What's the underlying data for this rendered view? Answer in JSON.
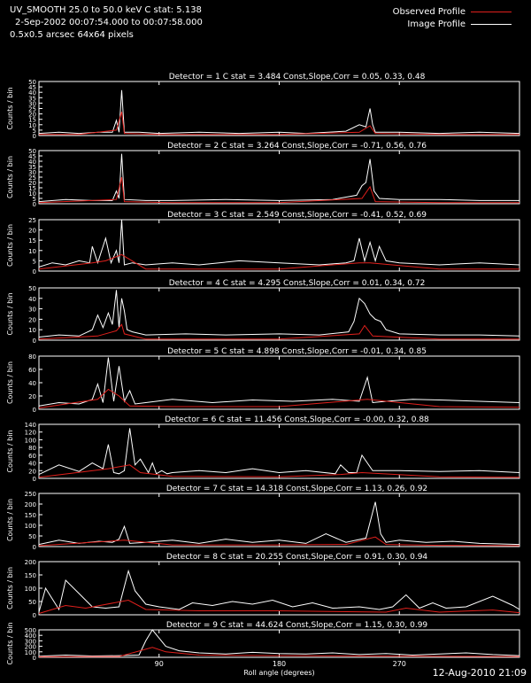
{
  "header": {
    "line1": "UV_SMOOTH 25.0 to 50.0 keV C stat: 5.138",
    "line2": "2-Sep-2002 00:07:54.000 to 00:07:58.000",
    "line3": "0.5x0.5 arcsec 64x64 pixels"
  },
  "legend": [
    {
      "label": "Observed Profile",
      "color": "#e0201c"
    },
    {
      "label": "Image Profile",
      "color": "#ffffff"
    }
  ],
  "footer": {
    "timestamp": "12-Aug-2010 21:09"
  },
  "colors": {
    "background": "#000000",
    "axes": "#ffffff",
    "observed": "#e0201c",
    "image": "#ffffff"
  },
  "chart_data": [
    {
      "type": "line",
      "title": "Detector = 1  C stat = 3.484  Const,Slope,Corr = 0.05, 0.33, 0.48",
      "ylabel": "Counts / bin",
      "xlim": [
        0,
        360
      ],
      "ylim": [
        0,
        50
      ],
      "yticks": [
        0,
        5,
        10,
        15,
        20,
        25,
        30,
        35,
        40,
        45,
        50
      ],
      "xticks": [
        90,
        180,
        270
      ],
      "series": [
        {
          "name": "Image Profile",
          "x": [
            0,
            15,
            30,
            45,
            55,
            58,
            60,
            62,
            64,
            75,
            90,
            120,
            150,
            180,
            200,
            230,
            240,
            245,
            248,
            250,
            252,
            255,
            270,
            300,
            330,
            360
          ],
          "values": [
            2,
            3,
            2,
            3,
            3,
            14,
            3,
            42,
            3,
            3,
            2,
            3,
            2,
            3,
            2,
            4,
            10,
            8,
            25,
            10,
            3,
            3,
            3,
            2,
            3,
            2
          ]
        },
        {
          "name": "Observed Profile",
          "x": [
            0,
            30,
            58,
            62,
            64,
            90,
            180,
            240,
            248,
            252,
            300,
            360
          ],
          "values": [
            1,
            1,
            5,
            22,
            2,
            1,
            1,
            3,
            9,
            2,
            1,
            1
          ]
        }
      ]
    },
    {
      "type": "line",
      "title": "Detector = 2  C stat = 3.264  Const,Slope,Corr = -0.71, 0.56, 0.76",
      "ylabel": "Counts / bin",
      "xlim": [
        0,
        360
      ],
      "ylim": [
        0,
        50
      ],
      "yticks": [
        0,
        5,
        10,
        15,
        20,
        25,
        30,
        35,
        40,
        45,
        50
      ],
      "xticks": [
        90,
        180,
        270
      ],
      "series": [
        {
          "name": "Image Profile",
          "x": [
            0,
            20,
            40,
            55,
            58,
            60,
            62,
            64,
            80,
            100,
            140,
            180,
            220,
            238,
            242,
            245,
            248,
            251,
            255,
            270,
            300,
            330,
            360
          ],
          "values": [
            2,
            4,
            3,
            3,
            12,
            5,
            47,
            4,
            3,
            3,
            4,
            3,
            4,
            8,
            17,
            20,
            42,
            12,
            5,
            4,
            4,
            3,
            3
          ]
        },
        {
          "name": "Observed Profile",
          "x": [
            0,
            58,
            62,
            64,
            100,
            180,
            242,
            248,
            252,
            300,
            360
          ],
          "values": [
            1,
            4,
            25,
            2,
            1,
            1,
            5,
            16,
            2,
            1,
            1
          ]
        }
      ]
    },
    {
      "type": "line",
      "title": "Detector = 3  C stat = 2.549  Const,Slope,Corr = -0.41, 0.52, 0.69",
      "ylabel": "Counts / bin",
      "xlim": [
        0,
        360
      ],
      "ylim": [
        0,
        25
      ],
      "yticks": [
        0,
        5,
        10,
        15,
        20,
        25
      ],
      "xticks": [
        90,
        180,
        270
      ],
      "series": [
        {
          "name": "Image Profile",
          "x": [
            0,
            10,
            20,
            30,
            38,
            40,
            44,
            50,
            54,
            58,
            60,
            62,
            64,
            70,
            80,
            100,
            120,
            150,
            180,
            210,
            230,
            236,
            240,
            244,
            248,
            252,
            255,
            260,
            270,
            300,
            330,
            360
          ],
          "values": [
            2,
            4,
            3,
            5,
            4,
            12,
            4,
            16,
            4,
            10,
            4,
            25,
            3,
            4,
            3,
            4,
            3,
            5,
            4,
            3,
            4,
            5,
            16,
            5,
            14,
            5,
            12,
            5,
            4,
            3,
            4,
            3
          ]
        },
        {
          "name": "Observed Profile",
          "x": [
            0,
            40,
            50,
            62,
            80,
            180,
            240,
            248,
            300,
            360
          ],
          "values": [
            1,
            4,
            5,
            8,
            1,
            1,
            4,
            4,
            1,
            1
          ]
        }
      ]
    },
    {
      "type": "line",
      "title": "Detector = 4  C stat = 4.295  Const,Slope,Corr = 0.01, 0.34, 0.72",
      "ylabel": "Counts / bin",
      "xlim": [
        0,
        360
      ],
      "ylim": [
        0,
        50
      ],
      "yticks": [
        0,
        10,
        20,
        30,
        40,
        50
      ],
      "xticks": [
        90,
        180,
        270
      ],
      "series": [
        {
          "name": "Image Profile",
          "x": [
            0,
            15,
            30,
            40,
            44,
            48,
            52,
            55,
            58,
            60,
            62,
            64,
            66,
            70,
            80,
            110,
            140,
            180,
            210,
            232,
            236,
            240,
            244,
            248,
            252,
            256,
            260,
            270,
            300,
            330,
            360
          ],
          "values": [
            3,
            5,
            4,
            10,
            24,
            12,
            26,
            15,
            48,
            12,
            40,
            28,
            10,
            8,
            5,
            6,
            5,
            6,
            5,
            8,
            18,
            40,
            35,
            25,
            20,
            18,
            10,
            6,
            5,
            5,
            4
          ]
        },
        {
          "name": "Observed Profile",
          "x": [
            0,
            44,
            58,
            62,
            64,
            80,
            180,
            240,
            244,
            250,
            300,
            360
          ],
          "values": [
            1,
            4,
            9,
            15,
            6,
            1,
            1,
            6,
            14,
            4,
            1,
            1
          ]
        }
      ]
    },
    {
      "type": "line",
      "title": "Detector = 5  C stat = 4.898  Const,Slope,Corr = -0.01, 0.34, 0.85",
      "ylabel": "Counts / bin",
      "xlim": [
        0,
        360
      ],
      "ylim": [
        0,
        80
      ],
      "yticks": [
        0,
        20,
        40,
        60,
        80
      ],
      "xticks": [
        90,
        180,
        270
      ],
      "series": [
        {
          "name": "Image Profile",
          "x": [
            0,
            15,
            30,
            40,
            44,
            48,
            52,
            56,
            60,
            64,
            68,
            72,
            80,
            100,
            130,
            160,
            190,
            220,
            240,
            246,
            250,
            260,
            280,
            300,
            330,
            360
          ],
          "values": [
            5,
            10,
            8,
            15,
            38,
            10,
            78,
            12,
            65,
            12,
            28,
            8,
            10,
            15,
            10,
            14,
            12,
            15,
            12,
            48,
            10,
            12,
            15,
            14,
            12,
            10
          ]
        },
        {
          "name": "Observed Profile",
          "x": [
            0,
            44,
            52,
            60,
            68,
            100,
            180,
            246,
            300,
            360
          ],
          "values": [
            2,
            15,
            30,
            20,
            5,
            4,
            4,
            15,
            4,
            3
          ]
        }
      ]
    },
    {
      "type": "line",
      "title": "Detector = 6  C stat = 11.456  Const,Slope,Corr = -0.00, 0.32, 0.88",
      "ylabel": "Counts / bin",
      "xlim": [
        0,
        360
      ],
      "ylim": [
        0,
        140
      ],
      "yticks": [
        0,
        20,
        40,
        60,
        80,
        100,
        120,
        140
      ],
      "xticks": [
        90,
        180,
        270
      ],
      "series": [
        {
          "name": "Image Profile",
          "x": [
            0,
            15,
            30,
            40,
            48,
            52,
            56,
            60,
            64,
            68,
            72,
            76,
            82,
            85,
            88,
            92,
            96,
            100,
            120,
            140,
            160,
            180,
            200,
            222,
            226,
            232,
            238,
            242,
            250,
            270,
            300,
            330,
            360
          ],
          "values": [
            10,
            35,
            18,
            40,
            25,
            88,
            15,
            12,
            20,
            130,
            35,
            50,
            15,
            40,
            12,
            20,
            12,
            15,
            20,
            15,
            25,
            15,
            20,
            12,
            35,
            15,
            15,
            60,
            20,
            20,
            18,
            20,
            15
          ]
        },
        {
          "name": "Observed Profile",
          "x": [
            0,
            52,
            68,
            76,
            100,
            180,
            226,
            242,
            300,
            360
          ],
          "values": [
            3,
            25,
            35,
            15,
            5,
            4,
            10,
            15,
            4,
            3
          ]
        }
      ]
    },
    {
      "type": "line",
      "title": "Detector = 7  C stat = 14.318  Const,Slope,Corr = 1.13, 0.26, 0.92",
      "ylabel": "Counts / bin",
      "xlim": [
        0,
        360
      ],
      "ylim": [
        0,
        250
      ],
      "yticks": [
        0,
        50,
        100,
        150,
        200,
        250
      ],
      "xticks": [
        90,
        180,
        270
      ],
      "series": [
        {
          "name": "Image Profile",
          "x": [
            0,
            15,
            30,
            45,
            55,
            60,
            64,
            68,
            80,
            100,
            120,
            140,
            160,
            180,
            200,
            215,
            230,
            245,
            252,
            256,
            260,
            270,
            290,
            310,
            330,
            360
          ],
          "values": [
            10,
            30,
            15,
            25,
            20,
            35,
            95,
            15,
            20,
            30,
            15,
            35,
            20,
            30,
            15,
            60,
            20,
            40,
            210,
            60,
            20,
            30,
            20,
            25,
            15,
            10
          ]
        },
        {
          "name": "Observed Profile",
          "x": [
            0,
            64,
            100,
            180,
            230,
            252,
            260,
            300,
            360
          ],
          "values": [
            4,
            30,
            8,
            8,
            10,
            45,
            10,
            6,
            4
          ]
        }
      ]
    },
    {
      "type": "line",
      "title": "Detector = 8  C stat = 20.255  Const,Slope,Corr = 0.91, 0.30, 0.94",
      "ylabel": "Counts / bin",
      "xlim": [
        0,
        360
      ],
      "ylim": [
        0,
        200
      ],
      "yticks": [
        0,
        50,
        100,
        150,
        200
      ],
      "xticks": [
        90,
        180,
        270
      ],
      "series": [
        {
          "name": "Image Profile",
          "x": [
            0,
            5,
            15,
            20,
            30,
            40,
            50,
            60,
            67,
            72,
            80,
            90,
            105,
            115,
            130,
            145,
            160,
            175,
            190,
            205,
            220,
            240,
            255,
            265,
            275,
            285,
            295,
            305,
            320,
            340,
            355,
            360
          ],
          "values": [
            10,
            100,
            20,
            130,
            80,
            30,
            25,
            30,
            165,
            90,
            40,
            30,
            20,
            45,
            35,
            50,
            40,
            55,
            30,
            45,
            25,
            30,
            20,
            30,
            75,
            25,
            45,
            25,
            30,
            70,
            35,
            20
          ]
        },
        {
          "name": "Observed Profile",
          "x": [
            0,
            20,
            35,
            67,
            80,
            120,
            180,
            260,
            275,
            300,
            340,
            360
          ],
          "values": [
            5,
            35,
            25,
            55,
            20,
            15,
            15,
            10,
            25,
            10,
            18,
            8
          ]
        }
      ]
    },
    {
      "type": "line",
      "title": "Detector = 9  C stat = 44.624  Const,Slope,Corr = 1.15, 0.30, 0.99",
      "ylabel": "Counts / bin",
      "xlabel": "Roll angle (degrees)",
      "xlim": [
        0,
        360
      ],
      "ylim": [
        0,
        500
      ],
      "yticks": [
        0,
        100,
        200,
        300,
        400,
        500
      ],
      "xticks": [
        90,
        180,
        270
      ],
      "series": [
        {
          "name": "Image Profile",
          "x": [
            0,
            20,
            40,
            60,
            75,
            80,
            85,
            90,
            95,
            105,
            120,
            140,
            160,
            180,
            200,
            220,
            240,
            260,
            280,
            300,
            320,
            340,
            360
          ],
          "values": [
            20,
            40,
            25,
            30,
            40,
            300,
            520,
            350,
            200,
            120,
            80,
            60,
            90,
            70,
            60,
            80,
            50,
            70,
            40,
            60,
            80,
            50,
            30
          ]
        },
        {
          "name": "Observed Profile",
          "x": [
            0,
            60,
            85,
            95,
            120,
            180,
            240,
            300,
            360
          ],
          "values": [
            10,
            15,
            180,
            100,
            40,
            30,
            25,
            20,
            15
          ]
        }
      ]
    }
  ]
}
